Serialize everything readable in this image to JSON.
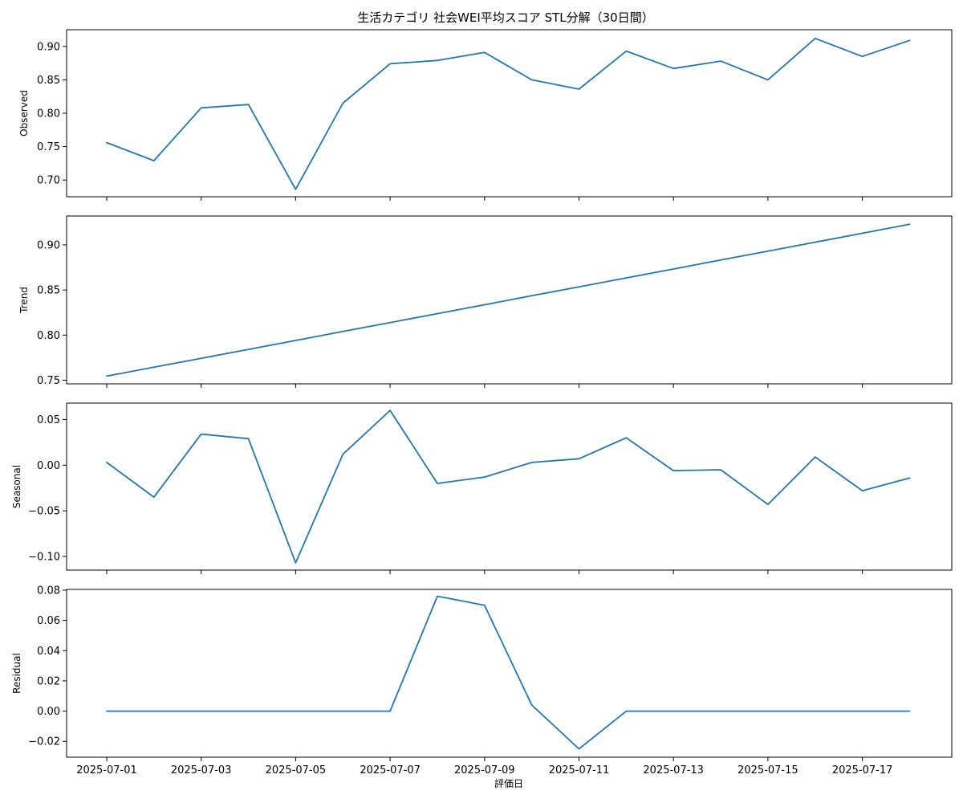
{
  "chart_data": {
    "type": "line",
    "title": "生活カテゴリ 社会WEI平均スコア STL分解（30日間）",
    "xlabel": "評価日",
    "x": [
      "2025-07-01",
      "2025-07-02",
      "2025-07-03",
      "2025-07-04",
      "2025-07-05",
      "2025-07-06",
      "2025-07-07",
      "2025-07-08",
      "2025-07-09",
      "2025-07-10",
      "2025-07-11",
      "2025-07-12",
      "2025-07-13",
      "2025-07-14",
      "2025-07-15",
      "2025-07-16",
      "2025-07-17",
      "2025-07-18"
    ],
    "x_ticks": [
      "2025-07-01",
      "2025-07-03",
      "2025-07-05",
      "2025-07-07",
      "2025-07-09",
      "2025-07-11",
      "2025-07-13",
      "2025-07-15",
      "2025-07-17"
    ],
    "grid": false,
    "panels": [
      {
        "ylabel": "Observed",
        "ylim": [
          0.675,
          0.925
        ],
        "yticks": [
          0.7,
          0.75,
          0.8,
          0.85,
          0.9
        ],
        "tick_decimals": 2,
        "values": [
          0.756,
          0.729,
          0.808,
          0.813,
          0.686,
          0.815,
          0.874,
          0.879,
          0.891,
          0.85,
          0.836,
          0.893,
          0.867,
          0.878,
          0.85,
          0.912,
          0.885,
          0.909
        ]
      },
      {
        "ylabel": "Trend",
        "ylim": [
          0.746,
          0.932
        ],
        "yticks": [
          0.75,
          0.8,
          0.85,
          0.9
        ],
        "tick_decimals": 2,
        "values": [
          0.7545,
          0.7644,
          0.7743,
          0.7842,
          0.7941,
          0.804,
          0.8139,
          0.8238,
          0.8337,
          0.8436,
          0.8535,
          0.8634,
          0.8733,
          0.8832,
          0.8931,
          0.903,
          0.9129,
          0.9228
        ]
      },
      {
        "ylabel": "Seasonal",
        "ylim": [
          -0.115,
          0.068
        ],
        "yticks": [
          -0.1,
          -0.05,
          0.0,
          0.05
        ],
        "tick_decimals": 2,
        "values": [
          0.003,
          -0.035,
          0.034,
          0.029,
          -0.107,
          0.012,
          0.06,
          -0.02,
          -0.013,
          0.003,
          0.007,
          0.03,
          -0.006,
          -0.005,
          -0.043,
          0.009,
          -0.028,
          -0.014
        ]
      },
      {
        "ylabel": "Residual",
        "ylim": [
          -0.0305,
          0.0805
        ],
        "yticks": [
          -0.02,
          0.0,
          0.02,
          0.04,
          0.06,
          0.08
        ],
        "tick_decimals": 2,
        "values": [
          0,
          0,
          0,
          0,
          0,
          0,
          0,
          0.076,
          0.07,
          0.004,
          -0.025,
          0,
          0,
          0,
          0,
          0,
          0,
          0
        ]
      }
    ],
    "colors": {
      "series": "#1f77b4",
      "axes": "#000000",
      "background": "#ffffff"
    }
  }
}
